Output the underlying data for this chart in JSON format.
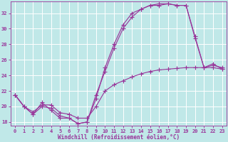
{
  "xlabel": "Windchill (Refroidissement éolien,°C)",
  "bg_color": "#c0e8e8",
  "line_color": "#993399",
  "grid_color": "#ffffff",
  "xlim": [
    -0.5,
    23.5
  ],
  "ylim": [
    17.5,
    33.5
  ],
  "yticks": [
    18,
    20,
    22,
    24,
    26,
    28,
    30,
    32
  ],
  "xticks": [
    0,
    1,
    2,
    3,
    4,
    5,
    6,
    7,
    8,
    9,
    10,
    11,
    12,
    13,
    14,
    15,
    16,
    17,
    18,
    19,
    20,
    21,
    22,
    23
  ],
  "line1_x": [
    0,
    1,
    2,
    3,
    4,
    5,
    6,
    7,
    8,
    9,
    10,
    11,
    12,
    13,
    14,
    15,
    16,
    17,
    18,
    19,
    20,
    21,
    22,
    23
  ],
  "line1_y": [
    21.5,
    20.0,
    19.0,
    20.5,
    19.5,
    18.5,
    18.5,
    17.8,
    18.0,
    21.0,
    25.0,
    28.0,
    30.5,
    32.0,
    32.5,
    33.0,
    33.2,
    33.2,
    33.0,
    33.0,
    29.0,
    25.0,
    25.5,
    24.8
  ],
  "line2_x": [
    0,
    1,
    2,
    3,
    4,
    5,
    6,
    7,
    8,
    9,
    10,
    11,
    12,
    13,
    14,
    15,
    16,
    17,
    18,
    19,
    20,
    21,
    22,
    23
  ],
  "line2_y": [
    21.5,
    20.0,
    19.0,
    20.0,
    19.8,
    18.8,
    18.5,
    17.8,
    18.0,
    21.5,
    24.5,
    27.5,
    30.0,
    31.5,
    32.5,
    33.0,
    33.0,
    33.2,
    33.0,
    33.0,
    28.8,
    25.0,
    25.3,
    25.0
  ],
  "line3_x": [
    0,
    1,
    2,
    3,
    4,
    5,
    6,
    7,
    8,
    9,
    10,
    11,
    12,
    13,
    14,
    15,
    16,
    17,
    18,
    19,
    20,
    21,
    22,
    23
  ],
  "line3_y": [
    21.5,
    20.0,
    19.3,
    20.2,
    20.2,
    19.2,
    19.0,
    18.5,
    18.5,
    20.0,
    22.0,
    22.8,
    23.3,
    23.8,
    24.2,
    24.5,
    24.7,
    24.8,
    24.9,
    25.0,
    25.0,
    25.0,
    25.0,
    24.8
  ]
}
